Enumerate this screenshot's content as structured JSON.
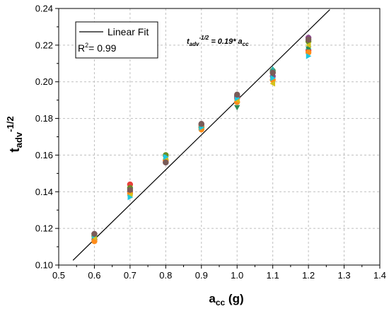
{
  "chart_data": {
    "type": "scatter",
    "xlabel": {
      "main": "a",
      "sub": "cc",
      "unit": " (g)"
    },
    "ylabel": {
      "main": "t",
      "sub": "adv",
      "sup": "-1/2"
    },
    "xlim": [
      0.5,
      1.4
    ],
    "ylim": [
      0.1,
      0.24
    ],
    "xticks": [
      "0.5",
      "0.6",
      "0.7",
      "0.8",
      "0.9",
      "1.0",
      "1.1",
      "1.2",
      "1.3",
      "1.4"
    ],
    "yticks": [
      "0.10",
      "0.12",
      "0.14",
      "0.16",
      "0.18",
      "0.20",
      "0.22",
      "0.24"
    ],
    "grid": true,
    "legend": {
      "placement": "top-left",
      "line_label": "Linear Fit",
      "r2_prefix": "R",
      "r2_sup": "2",
      "r2_value": "= 0.99"
    },
    "equation": {
      "lhs": "t",
      "lhs_sub": "adv",
      "lhs_sup": "-1/2",
      "rhs": " = 0.19* a",
      "rhs_sub": "cc"
    },
    "fit_line": {
      "slope": 0.19,
      "x": [
        0.54,
        1.26
      ]
    },
    "series": [
      {
        "color": "#e8413c",
        "shape": "circle",
        "x": [
          0.6,
          0.7,
          0.8,
          0.9,
          1.0,
          1.1,
          1.2
        ],
        "y": [
          0.114,
          0.144,
          0.157,
          0.176,
          0.191,
          0.205,
          0.217
        ]
      },
      {
        "color": "#6b8e23",
        "shape": "circle",
        "x": [
          0.6,
          0.7,
          0.8,
          0.9,
          1.0,
          1.1,
          1.2
        ],
        "y": [
          0.116,
          0.142,
          0.16,
          0.175,
          0.192,
          0.206,
          0.222
        ]
      },
      {
        "color": "#20b2aa",
        "shape": "triangle-up",
        "x": [
          0.6,
          0.7,
          0.8,
          0.9,
          1.0,
          1.1,
          1.2
        ],
        "y": [
          0.115,
          0.139,
          0.159,
          0.175,
          0.19,
          0.207,
          0.219
        ]
      },
      {
        "color": "#8b4789",
        "shape": "circle",
        "x": [
          0.6,
          0.7,
          0.8,
          0.9,
          1.0,
          1.1,
          1.2
        ],
        "y": [
          0.117,
          0.14,
          0.156,
          0.177,
          0.192,
          0.203,
          0.224
        ]
      },
      {
        "color": "#2e8b57",
        "shape": "triangle-down",
        "x": [
          0.6,
          0.7,
          0.8,
          0.9,
          1.0,
          1.1,
          1.2
        ],
        "y": [
          0.114,
          0.141,
          0.158,
          0.174,
          0.186,
          0.204,
          0.218
        ]
      },
      {
        "color": "#ff8c1a",
        "shape": "circle",
        "x": [
          0.6,
          0.7,
          0.8,
          0.9,
          1.0,
          1.1,
          1.2
        ],
        "y": [
          0.113,
          0.139,
          0.157,
          0.174,
          0.189,
          0.201,
          0.216
        ]
      },
      {
        "color": "#d4c21a",
        "shape": "triangle-left",
        "x": [
          0.6,
          0.7,
          0.8,
          0.9,
          1.0,
          1.1,
          1.2
        ],
        "y": [
          0.115,
          0.138,
          0.158,
          0.176,
          0.19,
          0.199,
          0.22
        ]
      },
      {
        "color": "#1ec8e0",
        "shape": "triangle-right",
        "x": [
          0.6,
          0.7,
          0.8,
          0.9,
          1.0,
          1.1,
          1.2
        ],
        "y": [
          0.116,
          0.137,
          0.159,
          0.175,
          0.191,
          0.202,
          0.214
        ]
      },
      {
        "color": "#7a5c58",
        "shape": "circle",
        "x": [
          0.6,
          0.7,
          0.8,
          0.9,
          1.0,
          1.1,
          1.2
        ],
        "y": [
          0.117,
          0.141,
          0.156,
          0.177,
          0.193,
          0.205,
          0.223
        ]
      }
    ]
  }
}
